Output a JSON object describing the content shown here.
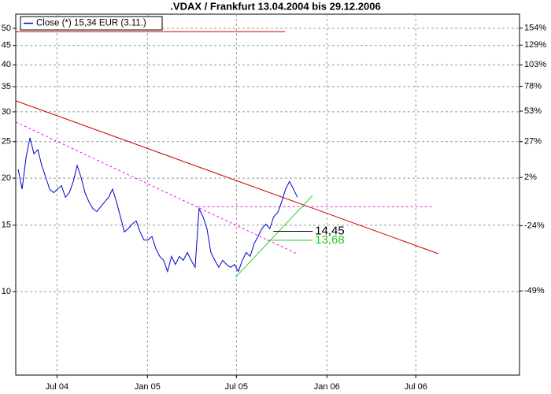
{
  "chart_data": {
    "type": "line",
    "title": ".VDAX / Frankfurt 13.04.2004 bis 29.12.2006",
    "x": [
      "2004-04-13",
      "2004-04-21",
      "2004-04-29",
      "2004-05-07",
      "2004-05-15",
      "2004-05-23",
      "2004-05-31",
      "2004-06-08",
      "2004-06-16",
      "2004-06-24",
      "2004-07-02",
      "2004-07-10",
      "2004-07-18",
      "2004-07-26",
      "2004-08-03",
      "2004-08-11",
      "2004-08-19",
      "2004-08-27",
      "2004-09-04",
      "2004-09-12",
      "2004-09-20",
      "2004-09-28",
      "2004-10-06",
      "2004-10-14",
      "2004-10-22",
      "2004-10-30",
      "2004-11-07",
      "2004-11-15",
      "2004-11-23",
      "2004-12-01",
      "2004-12-09",
      "2004-12-17",
      "2004-12-25",
      "2005-01-02",
      "2005-01-10",
      "2005-01-18",
      "2005-01-26",
      "2005-02-03",
      "2005-02-11",
      "2005-02-19",
      "2005-02-27",
      "2005-03-07",
      "2005-03-15",
      "2005-03-23",
      "2005-03-31",
      "2005-04-08",
      "2005-04-16",
      "2005-04-24",
      "2005-05-02",
      "2005-05-10",
      "2005-05-18",
      "2005-05-26",
      "2005-06-03",
      "2005-06-11",
      "2005-06-19",
      "2005-06-27",
      "2005-07-05",
      "2005-07-13",
      "2005-07-21",
      "2005-07-29",
      "2005-08-06",
      "2005-08-14",
      "2005-08-22",
      "2005-08-30",
      "2005-09-07",
      "2005-09-15",
      "2005-09-23",
      "2005-10-01",
      "2005-10-09",
      "2005-10-17",
      "2005-10-25",
      "2005-11-02"
    ],
    "series": [
      {
        "name": "Close (*) 15,34 EUR (3.11.)",
        "color": "#0000cc",
        "values": [
          21.1,
          18.7,
          22.7,
          25.6,
          23.2,
          23.8,
          21.6,
          20.1,
          18.7,
          18.3,
          18.7,
          19.1,
          17.8,
          18.3,
          19.6,
          21.6,
          20.1,
          18.3,
          17.3,
          16.6,
          16.3,
          16.8,
          17.3,
          17.8,
          18.7,
          17.3,
          15.8,
          14.4,
          14.7,
          15.1,
          15.4,
          14.4,
          13.7,
          13.7,
          14.0,
          13.0,
          12.4,
          12.1,
          11.3,
          12.4,
          11.8,
          12.4,
          12.1,
          12.7,
          12.1,
          11.6,
          16.6,
          15.8,
          14.7,
          12.7,
          12.1,
          11.6,
          12.1,
          11.8,
          11.6,
          11.8,
          11.3,
          12.1,
          12.7,
          12.4,
          13.4,
          14.0,
          14.7,
          15.1,
          14.7,
          15.8,
          16.2,
          17.3,
          18.7,
          19.6,
          18.7,
          17.8
        ]
      }
    ],
    "xlim": [
      "2004-04-08",
      "2007-01-28"
    ],
    "xticks": [
      {
        "value": "2004-07-01",
        "label": "Jul 04"
      },
      {
        "value": "2005-01-01",
        "label": "Jan 05"
      },
      {
        "value": "2005-07-01",
        "label": "Jul 05"
      },
      {
        "value": "2006-01-01",
        "label": "Jan 06"
      },
      {
        "value": "2006-07-01",
        "label": "Jul 06"
      }
    ],
    "ylim": [
      6.0,
      54.5
    ],
    "yticks": [
      10,
      15,
      20,
      25,
      30,
      35,
      40,
      45,
      50
    ],
    "ylog": true,
    "y2lim": [
      -69.5,
      176.6
    ],
    "y2log": true,
    "y2ticks": [
      {
        "value": 154,
        "label": "154%"
      },
      {
        "value": 129,
        "label": "129%"
      },
      {
        "value": 103,
        "label": "103%"
      },
      {
        "value": 78,
        "label": "78%"
      },
      {
        "value": 53,
        "label": "53%"
      },
      {
        "value": 27,
        "label": "27%"
      },
      {
        "value": 2,
        "label": "2%"
      },
      {
        "value": -24,
        "label": "-24%"
      },
      {
        "value": -49,
        "label": "-49%"
      }
    ],
    "grid": true,
    "legend": "top-left",
    "lines": [
      {
        "x": [
          "2004-04-08",
          "2006-08-16"
        ],
        "y": [
          32.1,
          12.6
        ],
        "color": "#cc0000",
        "dash": false
      },
      {
        "x": [
          "2004-04-08",
          "2005-10-08"
        ],
        "y": [
          49.0,
          49.0
        ],
        "color": "#cc0000",
        "dash": false
      },
      {
        "x": [
          "2004-04-08",
          "2005-11-01"
        ],
        "y": [
          28.2,
          12.6
        ],
        "color": "#ff00ff",
        "dash": true
      },
      {
        "x": [
          "2005-04-14",
          "2006-08-06"
        ],
        "y": [
          16.8,
          16.8
        ],
        "color": "#cc33cc",
        "dash": true
      },
      {
        "x": [
          "2005-06-29",
          "2005-12-03"
        ],
        "y": [
          10.9,
          18.0
        ],
        "color": "#33cc33",
        "dash": false
      }
    ],
    "levels": [
      {
        "x": [
          "2005-09-14",
          "2005-12-03"
        ],
        "value": 14.45,
        "label": "14,45",
        "color": "#000000"
      },
      {
        "x": [
          "2005-09-01",
          "2005-12-03"
        ],
        "value": 13.68,
        "label": "13,68",
        "color": "#22cc22"
      }
    ]
  }
}
